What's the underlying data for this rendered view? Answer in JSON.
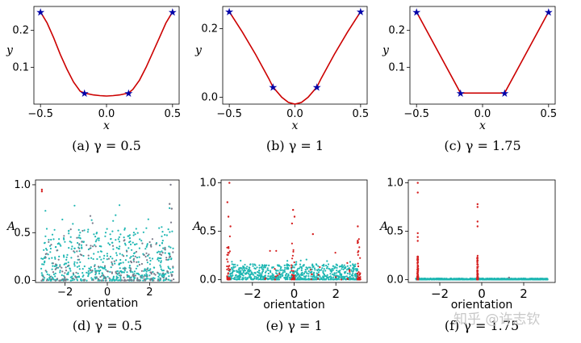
{
  "chart_data": [
    {
      "id": "a",
      "type": "line",
      "caption": "(a) γ = 0.5",
      "xlabel": "x",
      "ylabel": "y",
      "xlim": [
        -0.55,
        0.55
      ],
      "ylim": [
        0.0,
        0.265
      ],
      "xticks": [
        -0.5,
        0.0,
        0.5
      ],
      "xticklabels": [
        "−0.5",
        "0.0",
        "0.5"
      ],
      "yticks": [
        0.1,
        0.2
      ],
      "yticklabels": [
        "0.1",
        "0.2"
      ],
      "line_color": "#cc0000",
      "marker_color": "#0000a8",
      "curve_x": [
        -0.5,
        -0.45,
        -0.4,
        -0.35,
        -0.3,
        -0.25,
        -0.2,
        -0.167,
        -0.1,
        -0.05,
        0.0,
        0.05,
        0.1,
        0.167,
        0.2,
        0.25,
        0.3,
        0.35,
        0.4,
        0.45,
        0.5
      ],
      "curve_y": [
        0.25,
        0.22,
        0.18,
        0.135,
        0.095,
        0.06,
        0.035,
        0.03,
        0.025,
        0.023,
        0.022,
        0.023,
        0.025,
        0.03,
        0.04,
        0.065,
        0.1,
        0.14,
        0.18,
        0.22,
        0.25
      ],
      "markers_x": [
        -0.5,
        -0.167,
        0.167,
        0.5
      ],
      "markers_y": [
        0.25,
        0.03,
        0.03,
        0.25
      ]
    },
    {
      "id": "b",
      "type": "line",
      "caption": "(b) γ = 1",
      "xlabel": "x",
      "ylabel": "y",
      "xlim": [
        -0.55,
        0.55
      ],
      "ylim": [
        -0.02,
        0.265
      ],
      "xticks": [
        -0.5,
        0.0,
        0.5
      ],
      "xticklabels": [
        "−0.5",
        "0.0",
        "0.5"
      ],
      "yticks": [
        0.0,
        0.2
      ],
      "yticklabels": [
        "0.0",
        "0.2"
      ],
      "line_color": "#cc0000",
      "marker_color": "#0000a8",
      "curve_x": [
        -0.5,
        -0.4,
        -0.3,
        -0.2,
        -0.167,
        -0.1,
        -0.05,
        0.0,
        0.05,
        0.1,
        0.167,
        0.2,
        0.3,
        0.4,
        0.5
      ],
      "curve_y": [
        0.25,
        0.19,
        0.125,
        0.055,
        0.03,
        0.0,
        -0.015,
        -0.02,
        -0.015,
        0.0,
        0.03,
        0.055,
        0.125,
        0.19,
        0.25
      ],
      "markers_x": [
        -0.5,
        -0.167,
        0.167,
        0.5
      ],
      "markers_y": [
        0.25,
        0.03,
        0.03,
        0.25
      ]
    },
    {
      "id": "c",
      "type": "line",
      "caption": "(c) γ = 1.75",
      "xlabel": "x",
      "ylabel": "y",
      "xlim": [
        -0.55,
        0.55
      ],
      "ylim": [
        0.0,
        0.265
      ],
      "xticks": [
        -0.5,
        0.0,
        0.5
      ],
      "xticklabels": [
        "−0.5",
        "0.0",
        "0.5"
      ],
      "yticks": [
        0.1,
        0.2
      ],
      "yticklabels": [
        "0.1",
        "0.2"
      ],
      "line_color": "#cc0000",
      "marker_color": "#0000a8",
      "curve_x": [
        -0.5,
        -0.167,
        0.0,
        0.167,
        0.5
      ],
      "curve_y": [
        0.25,
        0.03,
        0.03,
        0.03,
        0.25
      ],
      "markers_x": [
        -0.5,
        -0.167,
        0.167,
        0.5
      ],
      "markers_y": [
        0.25,
        0.03,
        0.03,
        0.25
      ]
    },
    {
      "id": "d",
      "type": "scatter",
      "caption": "(d) γ = 0.5",
      "xlabel": "orientation",
      "ylabel": "A",
      "xlim": [
        -3.4,
        3.4
      ],
      "ylim": [
        -0.02,
        1.05
      ],
      "xticks": [
        -2,
        0,
        2
      ],
      "xticklabels": [
        "−2",
        "0",
        "2"
      ],
      "yticks": [
        0.0,
        0.5,
        1.0
      ],
      "yticklabels": [
        "0.0",
        "0.5",
        "1.0"
      ],
      "colors": {
        "teal": "#1fb7b3",
        "grey": "#7a7a8a",
        "red": "#d62020"
      },
      "series": [
        {
          "color_key": "teal",
          "x_range": [
            -3.14,
            3.14
          ],
          "y_max": 0.55,
          "count": 520,
          "pattern": "uniform"
        },
        {
          "color_key": "teal",
          "x_range": [
            -3.14,
            3.14
          ],
          "y_max": 0.85,
          "count": 60,
          "pattern": "uniform"
        },
        {
          "color_key": "grey",
          "x_range": [
            -3.14,
            3.14
          ],
          "y_max": 0.45,
          "count": 160,
          "pattern": "uniform"
        },
        {
          "color_key": "grey",
          "x_range": [
            -3.14,
            3.14
          ],
          "y_max": 0.8,
          "count": 25,
          "pattern": "uniform"
        }
      ],
      "outliers": [
        [
          -3.1,
          0.95,
          "red"
        ],
        [
          -3.1,
          0.93,
          "red"
        ],
        [
          3.0,
          1.0,
          "grey"
        ],
        [
          2.95,
          0.8,
          "grey"
        ],
        [
          3.05,
          0.75,
          "grey"
        ]
      ]
    },
    {
      "id": "e",
      "type": "scatter",
      "caption": "(e) γ = 1",
      "xlabel": "orientation",
      "ylabel": "A",
      "xlim": [
        -3.5,
        3.5
      ],
      "ylim": [
        -0.03,
        1.03
      ],
      "xticks": [
        -2,
        0,
        2
      ],
      "xticklabels": [
        "−2",
        "0",
        "2"
      ],
      "yticks": [
        0.0,
        0.5,
        1.0
      ],
      "yticklabels": [
        "0.0",
        "0.5",
        "1.0"
      ],
      "colors": {
        "teal": "#1fb7b3",
        "grey": "#7a7a8a",
        "red": "#d62020"
      },
      "series": [
        {
          "color_key": "teal",
          "x_range": [
            -3.14,
            3.14
          ],
          "y_max": 0.16,
          "count": 700,
          "pattern": "uniform"
        },
        {
          "color_key": "teal",
          "x_range": [
            -3.14,
            3.14
          ],
          "y_max": 0.22,
          "count": 60,
          "pattern": "uniform"
        },
        {
          "color_key": "red",
          "x_centers": [
            -3.14,
            -0.05,
            3.1
          ],
          "spread": 0.08,
          "y_max": 0.45,
          "count": 110,
          "pattern": "clusters"
        },
        {
          "color_key": "red",
          "x_centers": [
            -1.1,
            1.1,
            2.3
          ],
          "spread": 0.4,
          "y_max": 0.3,
          "count": 25,
          "pattern": "clusters"
        }
      ],
      "outliers": [
        [
          -3.1,
          1.0,
          "red"
        ],
        [
          -3.2,
          0.8,
          "red"
        ],
        [
          -3.15,
          0.65,
          "red"
        ],
        [
          -3.05,
          0.55,
          "red"
        ],
        [
          -0.05,
          0.72,
          "red"
        ],
        [
          0.02,
          0.65,
          "red"
        ],
        [
          -0.1,
          0.58,
          "red"
        ],
        [
          3.05,
          0.55,
          "red"
        ],
        [
          0.9,
          0.47,
          "red"
        ]
      ]
    },
    {
      "id": "f",
      "type": "scatter",
      "caption": "(f) γ = 1.75",
      "xlabel": "orientation",
      "ylabel": "A",
      "xlim": [
        -3.5,
        3.5
      ],
      "ylim": [
        -0.03,
        1.03
      ],
      "xticks": [
        -2,
        0,
        2
      ],
      "xticklabels": [
        "−2",
        "0",
        "2"
      ],
      "yticks": [
        0.0,
        0.5,
        1.0
      ],
      "yticklabels": [
        "0.0",
        "0.5",
        "1.0"
      ],
      "colors": {
        "teal": "#1fb7b3",
        "grey": "#7a7a8a",
        "red": "#d62020"
      },
      "series": [
        {
          "color_key": "teal",
          "x_range": [
            -3.14,
            3.14
          ],
          "y_max": 0.012,
          "count": 900,
          "pattern": "uniform"
        },
        {
          "color_key": "red",
          "x_centers": [
            -3.05,
            -0.2
          ],
          "spread": 0.02,
          "y_max": 0.25,
          "count": 200,
          "pattern": "clusters"
        }
      ],
      "outliers": [
        [
          -3.05,
          1.0,
          "red"
        ],
        [
          -3.05,
          0.9,
          "red"
        ],
        [
          -3.05,
          0.48,
          "red"
        ],
        [
          -3.05,
          0.44,
          "red"
        ],
        [
          -3.05,
          0.4,
          "red"
        ],
        [
          -0.2,
          0.78,
          "red"
        ],
        [
          -0.2,
          0.75,
          "red"
        ],
        [
          -0.2,
          0.6,
          "red"
        ],
        [
          -0.2,
          0.55,
          "red"
        ],
        [
          1.3,
          0.02,
          "grey"
        ]
      ]
    }
  ],
  "watermark": "知乎 @许志钦"
}
